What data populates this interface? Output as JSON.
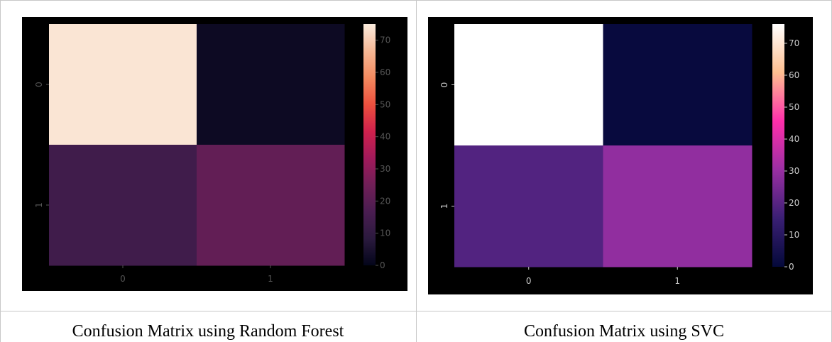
{
  "captions": {
    "left": "Confusion Matrix using Random Forest",
    "right": "Confusion Matrix using SVC"
  },
  "chart_data": [
    {
      "type": "heatmap",
      "x_categories": [
        "0",
        "1"
      ],
      "y_categories": [
        "0",
        "1"
      ],
      "values": [
        [
          74,
          2
        ],
        [
          14,
          22
        ]
      ],
      "colorbar": {
        "min": 0,
        "max": 75,
        "ticks": [
          0,
          10,
          20,
          30,
          40,
          50,
          60,
          70
        ]
      },
      "colormap": "rocket",
      "colormap_stops": [
        "#03051a",
        "#2b1a3e",
        "#4a1d51",
        "#701f57",
        "#a11a5b",
        "#d0214c",
        "#ed503e",
        "#f48a5f",
        "#f6b895",
        "#faebdd"
      ],
      "tick_color": "#555555",
      "background": "#000000",
      "grid": false
    },
    {
      "type": "heatmap",
      "x_categories": [
        "0",
        "1"
      ],
      "y_categories": [
        "0",
        "1"
      ],
      "values": [
        [
          76,
          1
        ],
        [
          19,
          29
        ]
      ],
      "colorbar": {
        "min": 0,
        "max": 76,
        "ticks": [
          0,
          10,
          20,
          30,
          40,
          50,
          60,
          70
        ]
      },
      "colormap": "spring-like",
      "colormap_stops": [
        "#04093a",
        "#3a1f74",
        "#9a2fa3",
        "#ff2fab",
        "#ffbf90",
        "#ffffff"
      ],
      "tick_color": "#cccccc",
      "background": "#000000",
      "grid": false
    }
  ]
}
